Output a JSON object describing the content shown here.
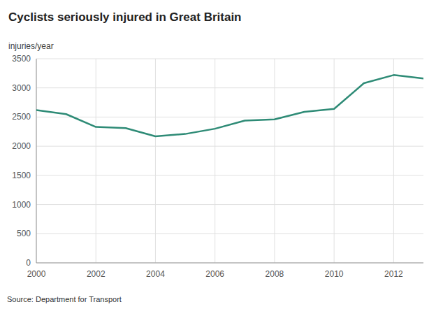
{
  "chart_data": {
    "type": "line",
    "title": "Cyclists seriously injured in Great Britain",
    "ylabel": "injuries/year",
    "annotations": [
      "Source: Department for Transport"
    ],
    "x": [
      2000,
      2001,
      2002,
      2003,
      2004,
      2005,
      2006,
      2007,
      2008,
      2009,
      2010,
      2011,
      2012,
      2013
    ],
    "values": [
      2620,
      2550,
      2330,
      2310,
      2170,
      2210,
      2300,
      2440,
      2460,
      2590,
      2640,
      3080,
      3220,
      3160
    ],
    "color": "#2e8b76",
    "xlim": [
      2000,
      2013
    ],
    "xticks": [
      2000,
      2002,
      2004,
      2006,
      2008,
      2010,
      2012
    ],
    "ylim": [
      0,
      3500
    ],
    "yticks": [
      0,
      500,
      1000,
      1500,
      2000,
      2500,
      3000,
      3500
    ],
    "grid": true
  }
}
